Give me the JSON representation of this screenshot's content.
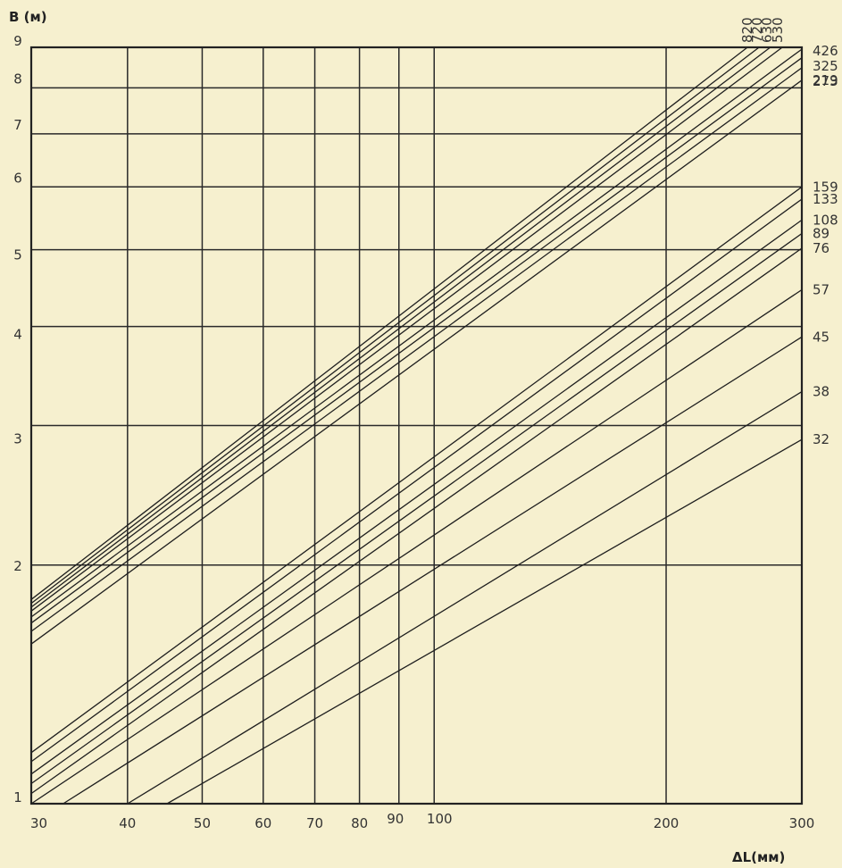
{
  "chart_data": {
    "type": "line",
    "x_scale": "log",
    "y_scale": "log",
    "xlabel": "ΔL(мм)",
    "ylabel": "B (м)",
    "xlim": [
      30,
      300
    ],
    "ylim": [
      1,
      9
    ],
    "grid": true,
    "x_ticks": [
      30,
      40,
      50,
      60,
      70,
      80,
      90,
      100,
      200,
      300
    ],
    "y_ticks": [
      1,
      2,
      3,
      4,
      5,
      6,
      7,
      8,
      9
    ],
    "series": [
      {
        "name": "820",
        "points": [
          [
            30,
            1.81
          ],
          [
            255,
            9
          ]
        ]
      },
      {
        "name": "720",
        "points": [
          [
            30,
            1.79
          ],
          [
            264,
            9
          ]
        ]
      },
      {
        "name": "630",
        "points": [
          [
            30,
            1.77
          ],
          [
            273,
            9
          ]
        ]
      },
      {
        "name": "530",
        "points": [
          [
            30,
            1.75
          ],
          [
            283,
            9
          ]
        ]
      },
      {
        "name": "426",
        "points": [
          [
            30,
            1.72
          ],
          [
            300,
            8.95
          ]
        ]
      },
      {
        "name": "325",
        "points": [
          [
            30,
            1.69
          ],
          [
            300,
            8.73
          ]
        ]
      },
      {
        "name": "273",
        "points": [
          [
            30,
            1.65
          ],
          [
            300,
            8.48
          ]
        ]
      },
      {
        "name": "219",
        "points": [
          [
            30,
            1.59
          ],
          [
            300,
            8.18
          ]
        ]
      },
      {
        "name": "159",
        "points": [
          [
            30,
            1.16
          ],
          [
            300,
            6.0
          ]
        ]
      },
      {
        "name": "133",
        "points": [
          [
            30,
            1.13
          ],
          [
            300,
            5.79
          ]
        ]
      },
      {
        "name": "108",
        "points": [
          [
            30,
            1.09
          ],
          [
            300,
            5.45
          ]
        ]
      },
      {
        "name": "89",
        "points": [
          [
            30,
            1.06
          ],
          [
            300,
            5.24
          ]
        ]
      },
      {
        "name": "76",
        "points": [
          [
            30,
            1.03
          ],
          [
            300,
            5.02
          ]
        ]
      },
      {
        "name": "57",
        "points": [
          [
            30,
            1.0
          ],
          [
            300,
            4.45
          ]
        ]
      },
      {
        "name": "45",
        "points": [
          [
            33,
            1.0
          ],
          [
            300,
            3.88
          ]
        ]
      },
      {
        "name": "38",
        "points": [
          [
            40,
            1.0
          ],
          [
            300,
            3.31
          ]
        ]
      },
      {
        "name": "32",
        "points": [
          [
            45,
            1.0
          ],
          [
            300,
            2.88
          ]
        ]
      }
    ]
  }
}
